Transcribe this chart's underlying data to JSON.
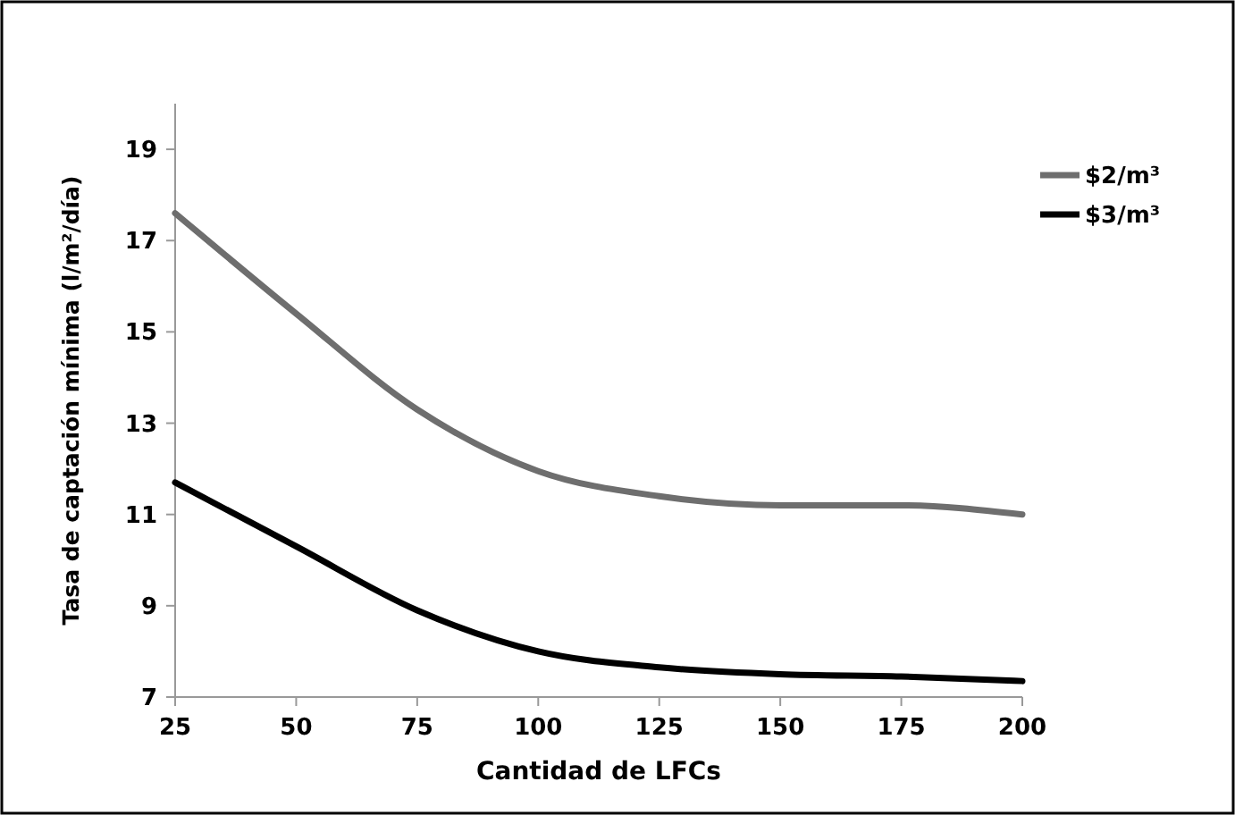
{
  "chart_data": {
    "type": "line",
    "xlabel": "Cantidad de LFCs",
    "ylabel": "Tasa de captación mínima (l/m²/día)",
    "x": [
      25,
      50,
      75,
      100,
      125,
      150,
      175,
      200
    ],
    "series": [
      {
        "name": "$2/m³",
        "color": "#6e6e6e",
        "values": [
          17.6,
          15.4,
          13.3,
          11.95,
          11.4,
          11.2,
          11.2,
          11.0
        ]
      },
      {
        "name": "$3/m³",
        "color": "#000000",
        "values": [
          11.7,
          10.3,
          8.9,
          8.0,
          7.65,
          7.5,
          7.45,
          7.35
        ]
      }
    ],
    "xlim": [
      25,
      200
    ],
    "xticks": [
      25,
      50,
      75,
      100,
      125,
      150,
      175,
      200
    ],
    "ylim": [
      7,
      20
    ],
    "yticks": [
      7,
      9,
      11,
      13,
      15,
      17,
      19
    ],
    "grid": false,
    "legend": "right",
    "marker": "none",
    "line_style": "solid"
  }
}
